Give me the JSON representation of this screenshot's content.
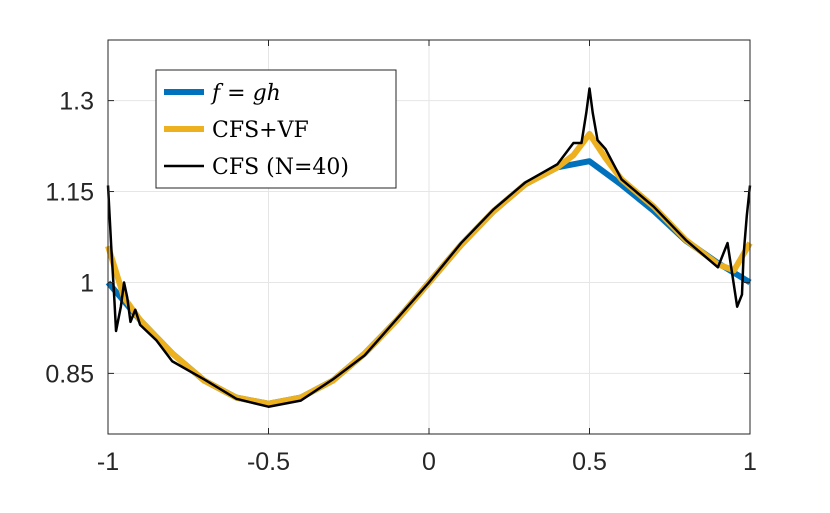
{
  "chart_data": {
    "type": "line",
    "title": "",
    "xlabel": "",
    "ylabel": "",
    "xlim": [
      -1,
      1
    ],
    "ylim": [
      0.75,
      1.4
    ],
    "x_ticks": [
      -1,
      -0.5,
      0,
      0.5,
      1
    ],
    "x_tick_labels": [
      "-1",
      "-0.5",
      "0",
      "0.5",
      "1"
    ],
    "y_ticks": [
      0.85,
      1,
      1.15,
      1.3
    ],
    "y_tick_labels": [
      "0.85",
      "1",
      "1.15",
      "1.3"
    ],
    "grid": true,
    "legend_position": "top-left",
    "series": [
      {
        "name": "f = gh",
        "color": "#0072BD",
        "x": [
          -1,
          -0.9,
          -0.8,
          -0.7,
          -0.6,
          -0.5,
          -0.4,
          -0.3,
          -0.2,
          -0.1,
          0,
          0.1,
          0.2,
          0.3,
          0.4,
          0.5,
          0.6,
          0.7,
          0.8,
          0.9,
          1
        ],
        "y": [
          1.0,
          0.938,
          0.883,
          0.838,
          0.81,
          0.8,
          0.81,
          0.838,
          0.883,
          0.938,
          1.0,
          1.062,
          1.117,
          1.162,
          1.19,
          1.2,
          1.161,
          1.118,
          1.069,
          1.032,
          1.0
        ]
      },
      {
        "name": "CFS+VF",
        "color": "#EDB120",
        "x": [
          -1,
          -0.95,
          -0.9,
          -0.8,
          -0.7,
          -0.6,
          -0.5,
          -0.4,
          -0.3,
          -0.2,
          -0.1,
          0,
          0.1,
          0.2,
          0.3,
          0.4,
          0.45,
          0.5,
          0.55,
          0.6,
          0.7,
          0.8,
          0.9,
          0.95,
          1
        ],
        "y": [
          1.06,
          0.975,
          0.938,
          0.883,
          0.838,
          0.81,
          0.8,
          0.81,
          0.838,
          0.883,
          0.938,
          1.0,
          1.062,
          1.117,
          1.162,
          1.19,
          1.21,
          1.245,
          1.205,
          1.17,
          1.125,
          1.07,
          1.03,
          1.02,
          1.065
        ]
      },
      {
        "name": "CFS (N=40)",
        "color": "#000000",
        "x": [
          -1,
          -0.99,
          -0.98,
          -0.975,
          -0.96,
          -0.95,
          -0.94,
          -0.93,
          -0.915,
          -0.9,
          -0.85,
          -0.8,
          -0.7,
          -0.6,
          -0.5,
          -0.4,
          -0.3,
          -0.2,
          -0.1,
          0,
          0.1,
          0.2,
          0.3,
          0.4,
          0.45,
          0.475,
          0.49,
          0.5,
          0.51,
          0.525,
          0.55,
          0.6,
          0.7,
          0.8,
          0.9,
          0.93,
          0.95,
          0.96,
          0.975,
          0.98,
          0.99,
          1
        ],
        "y": [
          1.16,
          1.06,
          0.97,
          0.92,
          0.96,
          1.0,
          0.975,
          0.935,
          0.955,
          0.93,
          0.905,
          0.87,
          0.84,
          0.808,
          0.795,
          0.805,
          0.84,
          0.88,
          0.94,
          1.0,
          1.065,
          1.12,
          1.165,
          1.195,
          1.23,
          1.23,
          1.28,
          1.32,
          1.28,
          1.235,
          1.22,
          1.17,
          1.125,
          1.07,
          1.025,
          1.065,
          0.995,
          0.96,
          0.98,
          1.045,
          1.11,
          1.16
        ]
      }
    ]
  },
  "legend": {
    "items": [
      {
        "label_pre": "",
        "label_math": "f = gh",
        "color": "#0072BD"
      },
      {
        "label_pre": "CFS+VF",
        "label_math": "",
        "color": "#EDB120"
      },
      {
        "label_pre": "CFS (N=40)",
        "label_math": "",
        "color": "#000000"
      }
    ]
  }
}
